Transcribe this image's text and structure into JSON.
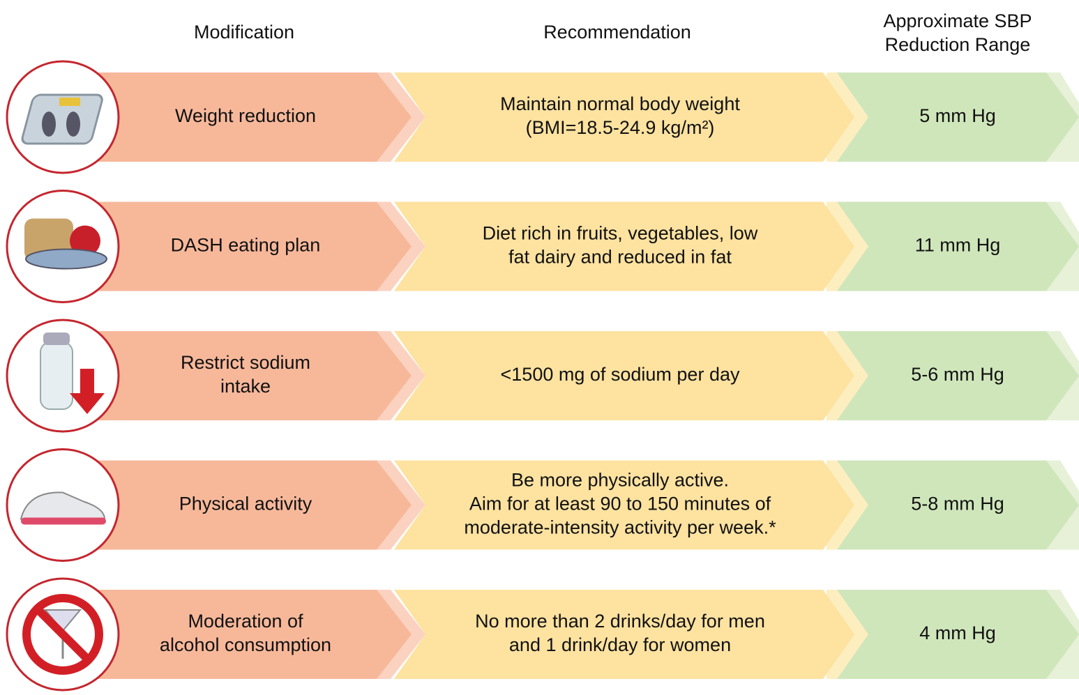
{
  "header": {
    "modification": "Modification",
    "recommendation": "Recommendation",
    "reduction": [
      "Approximate SBP",
      "Reduction Range"
    ]
  },
  "rows": [
    {
      "modification": [
        "Weight reduction"
      ],
      "recommendation": [
        "Maintain normal body weight",
        "(BMI=18.5-24.9 kg/m²)"
      ],
      "reduction": "5 mm Hg"
    },
    {
      "modification": [
        "DASH eating plan"
      ],
      "recommendation": [
        "Diet rich in fruits, vegetables, low",
        "fat dairy and reduced in fat"
      ],
      "reduction": "11 mm Hg"
    },
    {
      "modification": [
        "Restrict sodium",
        "intake"
      ],
      "recommendation": [
        "<1500 mg of sodium per day"
      ],
      "reduction": "5-6 mm Hg"
    },
    {
      "modification": [
        "Physical activity"
      ],
      "recommendation": [
        "Be more physically active.",
        "Aim for at least 90 to 150 minutes of",
        "moderate-intensity activity per week.*"
      ],
      "reduction": "5-8 mm Hg"
    },
    {
      "modification": [
        "Moderation of",
        "alcohol consumption"
      ],
      "recommendation": [
        "No more than 2 drinks/day for men",
        "and 1 drink/day for women"
      ],
      "reduction": "4 mm Hg"
    }
  ]
}
